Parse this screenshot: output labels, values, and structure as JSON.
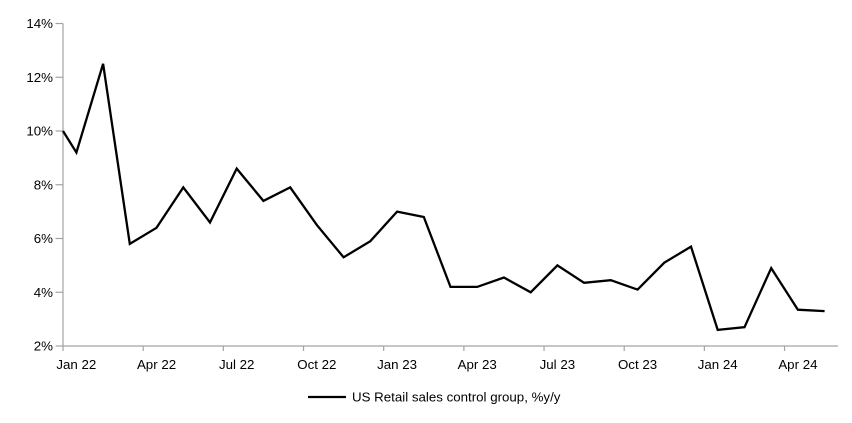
{
  "chart_data": {
    "type": "line",
    "title": "",
    "legend_position": "bottom-center",
    "grid": false,
    "ylim": [
      2,
      14
    ],
    "yticks": [
      2,
      4,
      6,
      8,
      10,
      12,
      14
    ],
    "ytick_labels": [
      "2%",
      "4%",
      "6%",
      "8%",
      "10%",
      "12%",
      "14%"
    ],
    "xtick_labels": [
      "Jan 22",
      "Apr 22",
      "Jul 22",
      "Oct 22",
      "Jan 23",
      "Apr 23",
      "Jul 23",
      "Oct 23",
      "Jan 24",
      "Apr 24"
    ],
    "xtick_interval_months": 3,
    "categories": [
      "Jan 22",
      "Feb 22",
      "Mar 22",
      "Apr 22",
      "May 22",
      "Jun 22",
      "Jul 22",
      "Aug 22",
      "Sep 22",
      "Oct 22",
      "Nov 22",
      "Dec 22",
      "Jan 23",
      "Feb 23",
      "Mar 23",
      "Apr 23",
      "May 23",
      "Jun 23",
      "Jul 23",
      "Aug 23",
      "Sep 23",
      "Oct 23",
      "Nov 23",
      "Dec 23",
      "Jan 24",
      "Feb 24",
      "Mar 24",
      "Apr 24",
      "May 24"
    ],
    "series": [
      {
        "name": "US Retail sales control group, %y/y",
        "color": "#000000",
        "values": [
          9.2,
          12.5,
          5.8,
          6.4,
          7.9,
          6.6,
          8.6,
          7.4,
          7.9,
          6.5,
          5.3,
          5.9,
          7.0,
          6.8,
          4.2,
          4.2,
          4.55,
          4.0,
          5.0,
          4.35,
          4.45,
          4.1,
          5.1,
          5.7,
          2.6,
          2.7,
          4.9,
          3.35,
          3.3
        ],
        "clipped_start_value_at_left_edge": 10.0
      }
    ],
    "axis_color": "#a3a3a3",
    "xlabel": "",
    "ylabel": ""
  },
  "legend": {
    "label": "US Retail sales control group, %y/y"
  }
}
